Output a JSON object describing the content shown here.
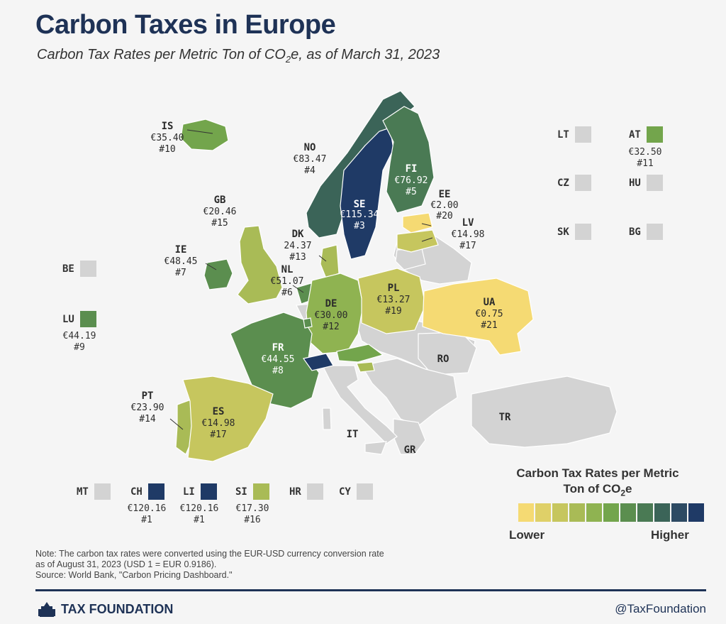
{
  "title": "Carbon Taxes in Europe",
  "subtitle_parts": {
    "pre": "Carbon Tax Rates per Metric Ton of CO",
    "sub": "2",
    "post": "e, as of March 31, 2023"
  },
  "colors": {
    "scale": [
      "#f5da73",
      "#dfd068",
      "#c6c65e",
      "#a9bb56",
      "#8fb351",
      "#73a54c",
      "#5b8e4f",
      "#4a7a54",
      "#3b6458",
      "#2d4a63",
      "#1f3a66"
    ],
    "none": "#d3d3d3",
    "brand": "#1e3256"
  },
  "countries": {
    "IS": {
      "code": "IS",
      "rate": "€35.40",
      "rank": "#10",
      "color": "#73a54c"
    },
    "NO": {
      "code": "NO",
      "rate": "€83.47",
      "rank": "#4",
      "color": "#3b6458"
    },
    "SE": {
      "code": "SE",
      "rate": "€115.34",
      "rank": "#3",
      "color": "#1f3a66"
    },
    "FI": {
      "code": "FI",
      "rate": "€76.92",
      "rank": "#5",
      "color": "#4a7a54"
    },
    "EE": {
      "code": "EE",
      "rate": "€2.00",
      "rank": "#20",
      "color": "#f5da73"
    },
    "LV": {
      "code": "LV",
      "rate": "€14.98",
      "rank": "#17",
      "color": "#c6c65e"
    },
    "GB": {
      "code": "GB",
      "rate": "€20.46",
      "rank": "#15",
      "color": "#a9bb56"
    },
    "DK": {
      "code": "DK",
      "rate": "24.37",
      "rank": "#13",
      "color": "#a9bb56"
    },
    "IE": {
      "code": "IE",
      "rate": "€48.45",
      "rank": "#7",
      "color": "#5b8e4f"
    },
    "NL": {
      "code": "NL",
      "rate": "€51.07",
      "rank": "#6",
      "color": "#5b8e4f"
    },
    "PL": {
      "code": "PL",
      "rate": "€13.27",
      "rank": "#19",
      "color": "#c6c65e"
    },
    "DE": {
      "code": "DE",
      "rate": "€30.00",
      "rank": "#12",
      "color": "#8fb351"
    },
    "UA": {
      "code": "UA",
      "rate": "€0.75",
      "rank": "#21",
      "color": "#f5da73"
    },
    "FR": {
      "code": "FR",
      "rate": "€44.55",
      "rank": "#8",
      "color": "#5b8e4f"
    },
    "PT": {
      "code": "PT",
      "rate": "€23.90",
      "rank": "#14",
      "color": "#a9bb56"
    },
    "ES": {
      "code": "ES",
      "rate": "€14.98",
      "rank": "#17",
      "color": "#c6c65e"
    },
    "AT": {
      "code": "AT",
      "rate": "€32.50",
      "rank": "#11",
      "color": "#73a54c"
    },
    "LU": {
      "code": "LU",
      "rate": "€44.19",
      "rank": "#9",
      "color": "#5b8e4f"
    },
    "CH": {
      "code": "CH",
      "rate": "€120.16",
      "rank": "#1",
      "color": "#1f3a66"
    },
    "LI": {
      "code": "LI",
      "rate": "€120.16",
      "rank": "#1",
      "color": "#1f3a66"
    },
    "SI": {
      "code": "SI",
      "rate": "€17.30",
      "rank": "#16",
      "color": "#a9bb56"
    }
  },
  "no_tax": {
    "LT": "LT",
    "CZ": "CZ",
    "HU": "HU",
    "SK": "SK",
    "BG": "BG",
    "BE": "BE",
    "MT": "MT",
    "HR": "HR",
    "CY": "CY",
    "RO": "RO",
    "IT": "IT",
    "GR": "GR",
    "TR": "TR"
  },
  "legend": {
    "title_pre": "Carbon Tax Rates per Metric",
    "title_line2_pre": "Ton of CO",
    "title_sub": "2",
    "title_post": "e",
    "low": "Lower",
    "high": "Higher"
  },
  "note": {
    "line1": "Note: The carbon tax rates were converted using the EUR-USD currency conversion rate",
    "line2": "as of August 31, 2023 (USD 1 = EUR 0.9186).",
    "line3": "Source: World Bank, \"Carbon Pricing Dashboard.\""
  },
  "footer": {
    "brand": "TAX FOUNDATION",
    "handle": "@TaxFoundation"
  }
}
